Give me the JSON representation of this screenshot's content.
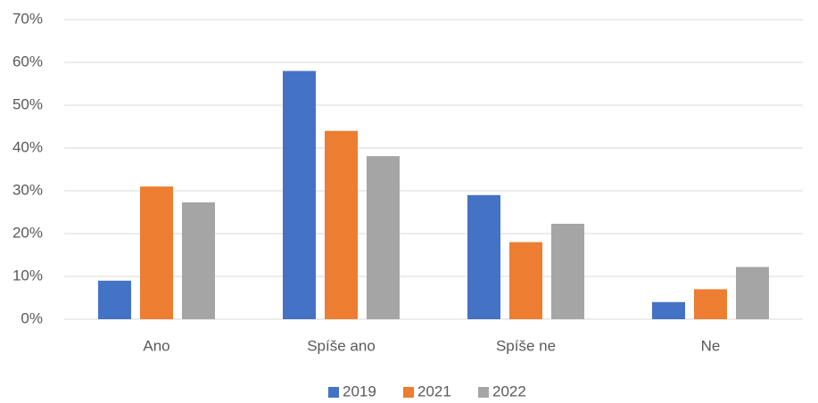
{
  "chart_data": {
    "type": "bar",
    "categories": [
      "Ano",
      "Spíše ano",
      "Spíše ne",
      "Ne"
    ],
    "series": [
      {
        "name": "2019",
        "color": "#4472c4",
        "values": [
          9,
          58,
          29,
          4
        ]
      },
      {
        "name": "2021",
        "color": "#ed7d31",
        "values": [
          31,
          44,
          18,
          7
        ]
      },
      {
        "name": "2022",
        "color": "#a5a5a5",
        "values": [
          27.3,
          38.1,
          22.3,
          12.2
        ]
      }
    ],
    "ylim": [
      0,
      70
    ],
    "yticks": [
      {
        "value": 0,
        "label": "0%"
      },
      {
        "value": 10,
        "label": "10%"
      },
      {
        "value": 20,
        "label": "20%"
      },
      {
        "value": 30,
        "label": "30%"
      },
      {
        "value": 40,
        "label": "40%"
      },
      {
        "value": 50,
        "label": "50%"
      },
      {
        "value": 60,
        "label": "60%"
      },
      {
        "value": 70,
        "label": "70%"
      }
    ],
    "grid": true,
    "legend": "bottom"
  }
}
